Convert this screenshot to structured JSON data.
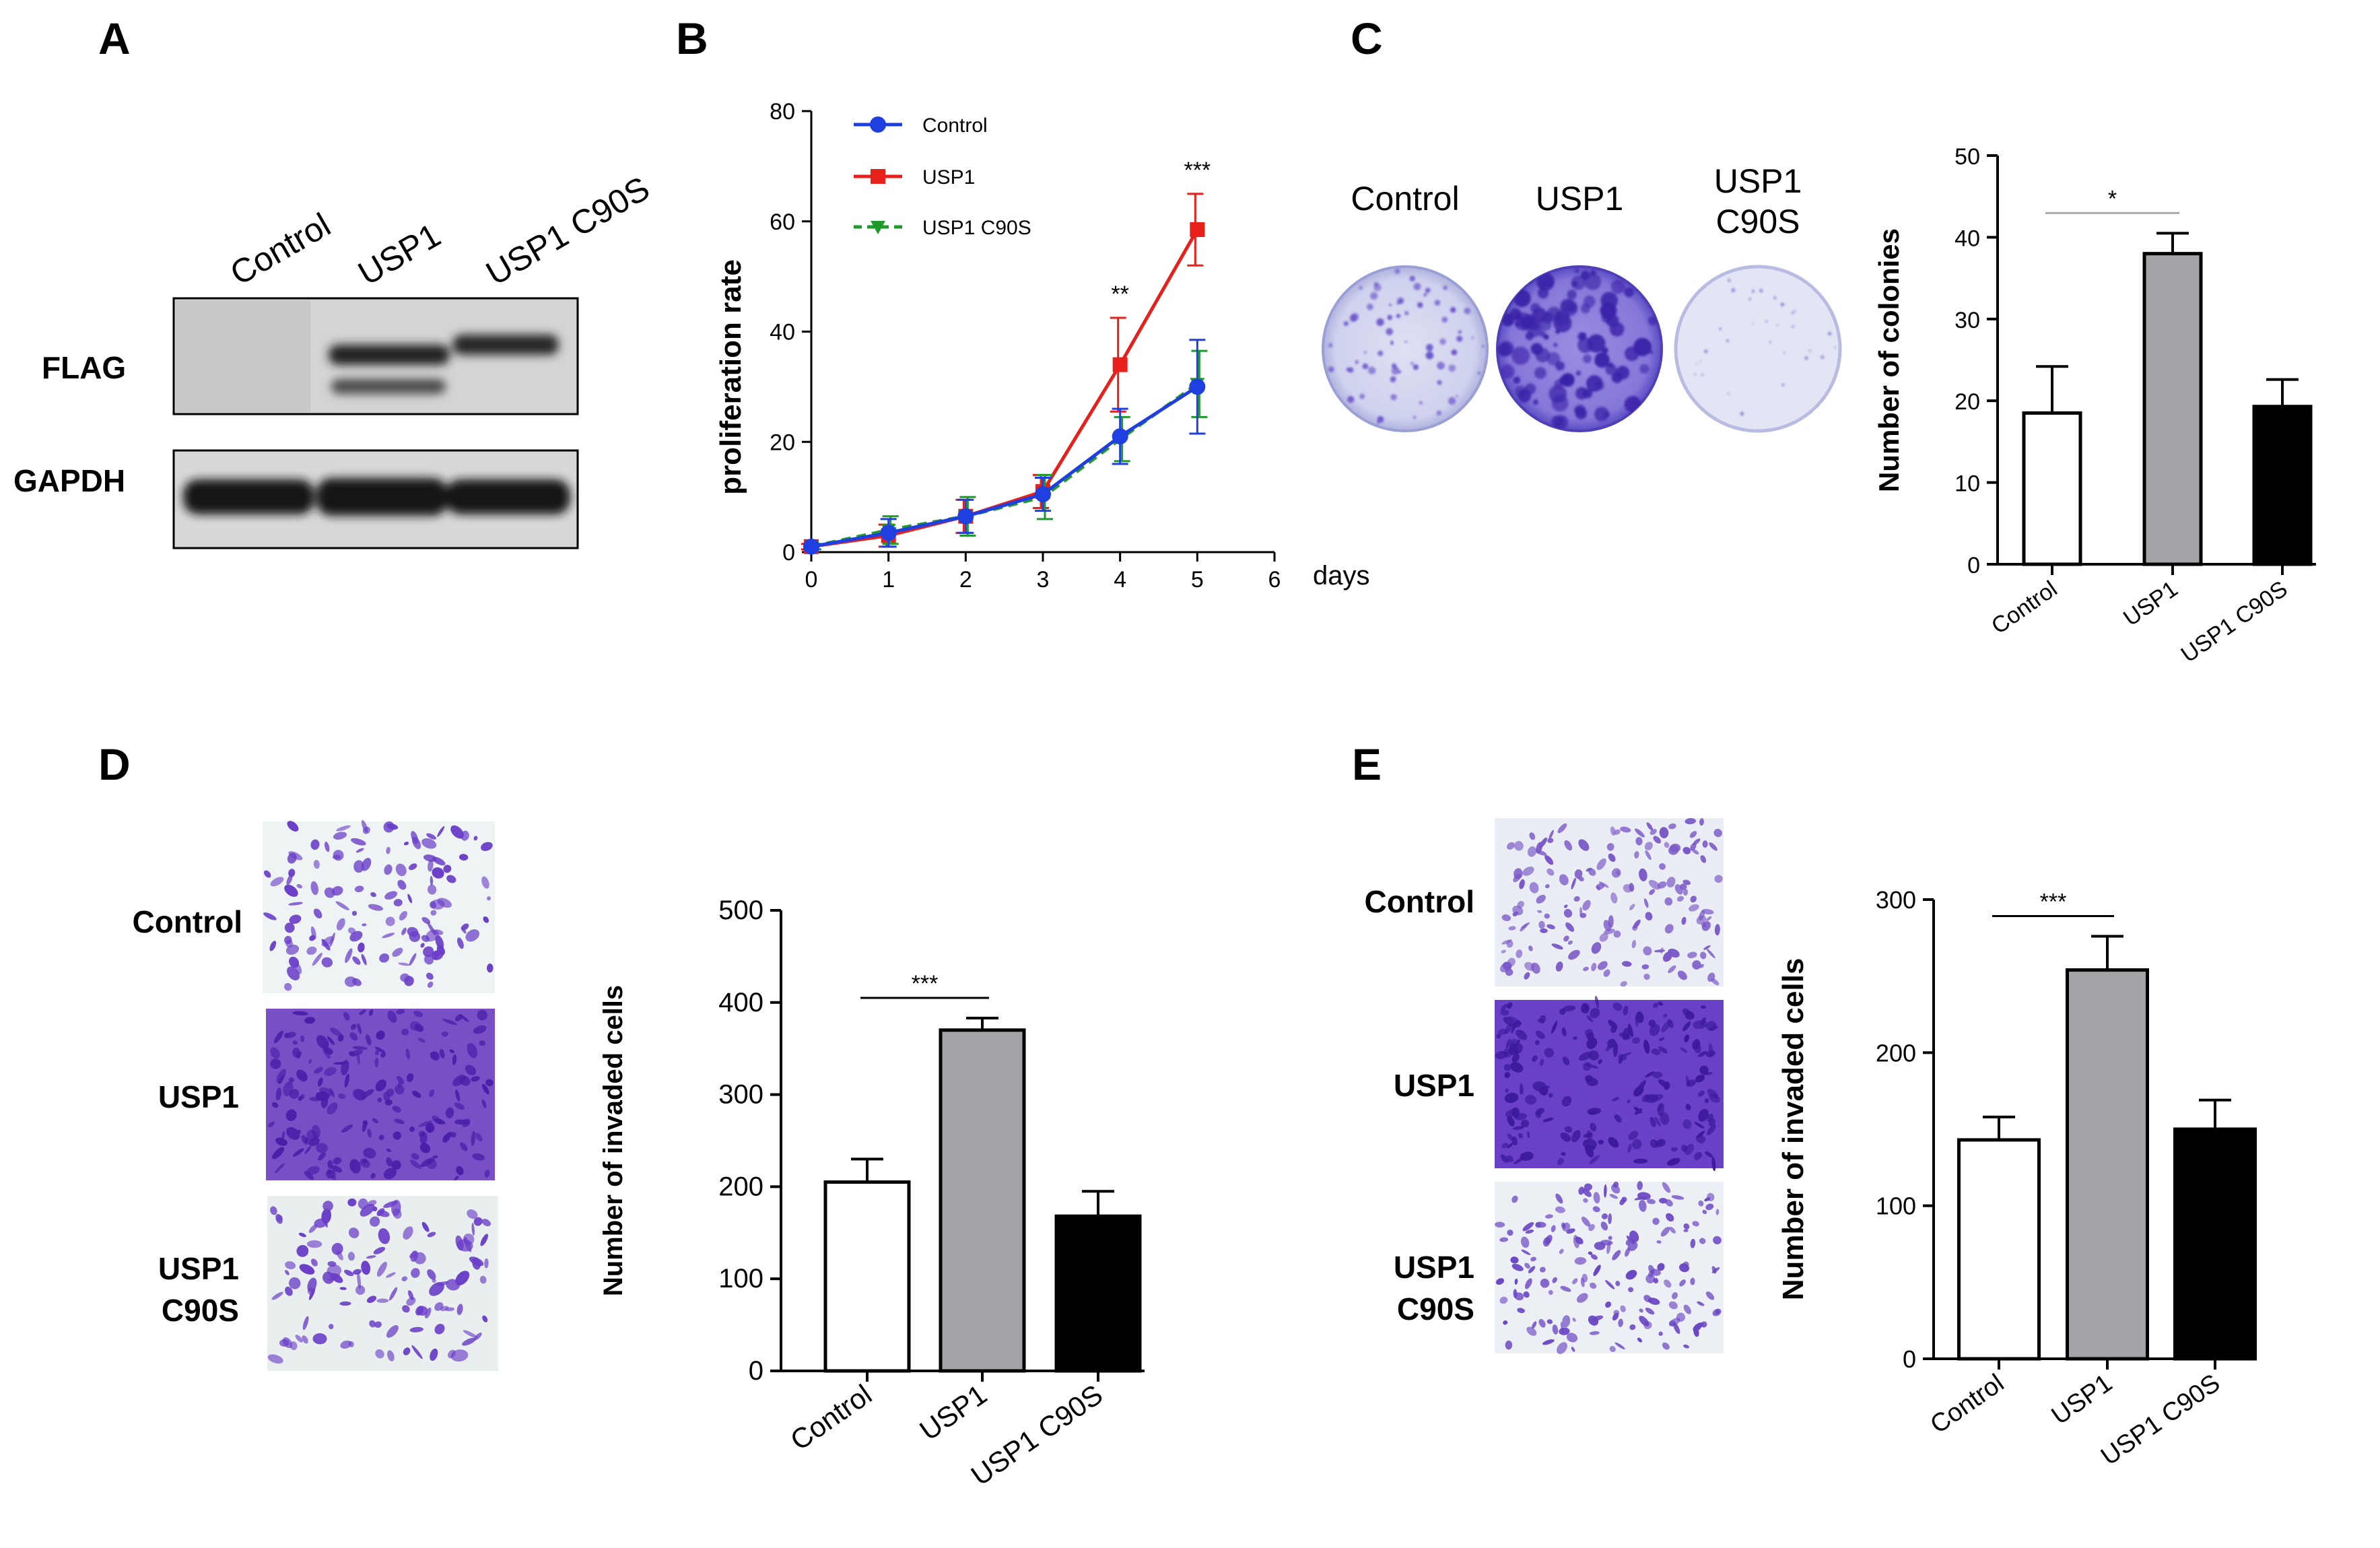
{
  "panels": {
    "a": "A",
    "b": "B",
    "c": "C",
    "d": "D",
    "e": "E"
  },
  "western": {
    "lanes": [
      "Control",
      "USP1",
      "USP1 C90S"
    ],
    "rows": [
      "FLAG",
      "GAPDH"
    ]
  },
  "colony_plates": {
    "labels": [
      "Control",
      "USP1",
      "USP1",
      "C90S"
    ]
  },
  "transwell_D": {
    "rows": [
      "Control",
      "USP1",
      "USP1",
      "C90S"
    ]
  },
  "transwell_E": {
    "rows": [
      "Control",
      "USP1",
      "USP1",
      "C90S"
    ]
  },
  "colors": {
    "control_line": "#1f3fe0",
    "usp1_line": "#e8201c",
    "c90s_line": "#1f9a2a",
    "control_bar": "#ffffff",
    "usp1_bar": "#a3a3a8",
    "c90s_bar": "#000000",
    "stain": "#6a3ec8"
  },
  "chart_data": [
    {
      "id": "B",
      "type": "line",
      "title": "",
      "xlabel": "days",
      "ylabel": "proliferation rate",
      "x": [
        0,
        1,
        2,
        3,
        4,
        5
      ],
      "xlim": [
        0,
        6
      ],
      "ylim": [
        0,
        80
      ],
      "xticks": [
        "0",
        "1",
        "2",
        "3",
        "4",
        "5",
        "6"
      ],
      "yticks": [
        "0",
        "20",
        "40",
        "60",
        "80"
      ],
      "series": [
        {
          "name": "Control",
          "values": [
            1,
            3.5,
            6.5,
            10.5,
            21,
            30
          ],
          "err": [
            0.5,
            2.5,
            3,
            3,
            5,
            8.5
          ]
        },
        {
          "name": "USP1",
          "values": [
            1,
            3,
            6.5,
            11,
            34,
            58.5
          ],
          "err": [
            0.5,
            2,
            3,
            3,
            8.5,
            6.5
          ]
        },
        {
          "name": "USP1 C90S",
          "values": [
            1,
            4,
            6.5,
            10,
            20.5,
            30.5
          ],
          "err": [
            0.5,
            2.5,
            3.5,
            4,
            4,
            6
          ]
        }
      ],
      "annotations": [
        {
          "x": 4,
          "text": "**"
        },
        {
          "x": 5,
          "text": "***"
        }
      ],
      "legend_position": "top-left"
    },
    {
      "id": "C",
      "type": "bar",
      "ylabel": "Number of colonies",
      "categories": [
        "Control",
        "USP1",
        "USP1 C90S"
      ],
      "values": [
        18.5,
        38,
        19.3
      ],
      "err": [
        5.7,
        2.5,
        3.3
      ],
      "ylim": [
        0,
        50
      ],
      "yticks": [
        "0",
        "10",
        "20",
        "30",
        "40",
        "50"
      ],
      "significance": {
        "from": 0,
        "to": 1,
        "text": "*"
      }
    },
    {
      "id": "D",
      "type": "bar",
      "ylabel": "Number of invaded cells",
      "categories": [
        "Control",
        "USP1",
        "USP1 C90S"
      ],
      "values": [
        205,
        370,
        168
      ],
      "err": [
        25,
        13,
        27
      ],
      "ylim": [
        0,
        500
      ],
      "yticks": [
        "0",
        "100",
        "200",
        "300",
        "400",
        "500"
      ],
      "significance": {
        "from": 0,
        "to": 1,
        "text": "***"
      }
    },
    {
      "id": "E",
      "type": "bar",
      "ylabel": "Number of invaded cells",
      "categories": [
        "Control",
        "USP1",
        "USP1 C90S"
      ],
      "values": [
        143,
        254,
        150
      ],
      "err": [
        15,
        22,
        19
      ],
      "ylim": [
        0,
        300
      ],
      "yticks": [
        "0",
        "100",
        "200",
        "300"
      ],
      "significance": {
        "from": 0,
        "to": 1,
        "text": "***"
      }
    }
  ]
}
